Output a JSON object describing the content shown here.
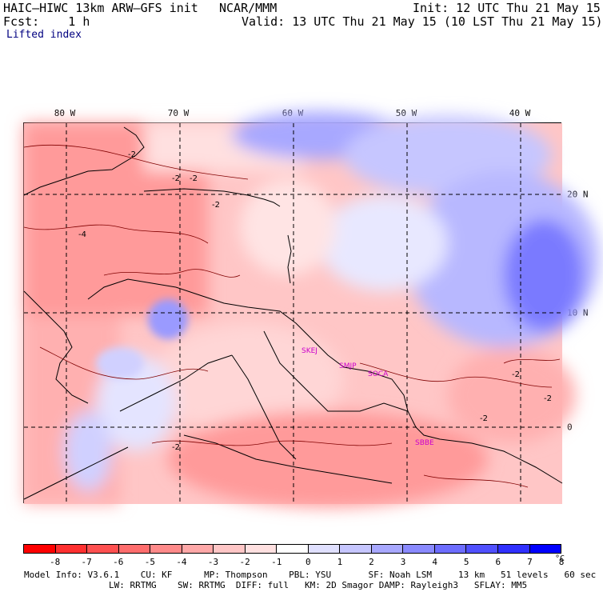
{
  "header": {
    "model": "HAIC–HIWC 13km ARW–GFS init",
    "org": "NCAR/MMM",
    "init": "Init: 12 UTC Thu 21 May 15",
    "fcst": "Fcst:    1 h",
    "valid": "Valid: 13 UTC Thu 21 May 15 (10 LST Thu 21 May 15)",
    "field": "Lifted index"
  },
  "map": {
    "lon_labels": [
      "80 W",
      "70 W",
      "60 W",
      "50 W",
      "40 W"
    ],
    "lat_labels": [
      "20 N",
      "10 N",
      "0"
    ],
    "contour_labels": [
      "-2",
      "-2",
      "-4",
      "-2",
      "-2",
      "-2",
      "-2",
      "-2",
      "-2"
    ],
    "stations": [
      "SKEJ",
      "SMJP",
      "SOCA",
      "SBBE"
    ]
  },
  "colorbar": {
    "colors": [
      "#ff0000",
      "#ff3030",
      "#ff5050",
      "#ff6d6d",
      "#ff8a8a",
      "#ffa8a8",
      "#ffc6c6",
      "#ffe0e0",
      "#ffffff",
      "#e0e0ff",
      "#c6c6ff",
      "#a8a8ff",
      "#8a8aff",
      "#6d6dff",
      "#5050ff",
      "#3030ff",
      "#0000ff"
    ],
    "ticks": [
      "-8",
      "-7",
      "-6",
      "-5",
      "-4",
      "-3",
      "-2",
      "-1",
      "0",
      "1",
      "2",
      "3",
      "4",
      "5",
      "6",
      "7",
      "8"
    ],
    "unit": "°C"
  },
  "footer": {
    "line1": "Model Info: V3.6.1    CU: KF      MP: Thompson    PBL: YSU       SF: Noah LSM     13 km   51 levels   60 sec",
    "line2": "                LW: RRTMG    SW: RRTMG  DIFF: full   KM: 2D Smagor DAMP: Rayleigh3   SFLAY: MM5"
  }
}
